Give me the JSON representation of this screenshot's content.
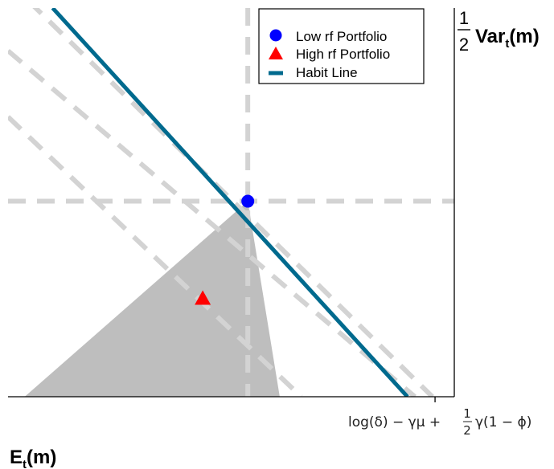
{
  "chart_data": {
    "type": "line",
    "title": "",
    "xlabel_parts": {
      "main": "E",
      "sub": "t",
      "rest": "(m)"
    },
    "ylabel_parts": {
      "frac_num": "1",
      "frac_den": "2",
      "main": "Var",
      "sub": "t",
      "rest": "(m)"
    },
    "x_tick_parts": {
      "pre": "log(δ) − γμ + ",
      "frac_num": "1",
      "frac_den": "2",
      "post": "γ(1 − ϕ)"
    },
    "xlim": [
      0,
      1.02
    ],
    "ylim": [
      0,
      1.0
    ],
    "x_tick_value": 0.976,
    "grid": false,
    "legend_position": "top-right",
    "series": [
      {
        "name": "Low rf Portfolio",
        "marker": "circle",
        "color": "#0000ff",
        "x": [
          0.548
        ],
        "y": [
          0.503
        ]
      },
      {
        "name": "High rf Portfolio",
        "marker": "triangle",
        "color": "#ff0000",
        "x": [
          0.445
        ],
        "y": [
          0.253
        ]
      },
      {
        "name": "Habit Line",
        "marker": "line",
        "color": "#006a8e",
        "x": [
          0.102,
          0.913
        ],
        "y": [
          1.0,
          0.0
        ]
      }
    ],
    "reference_lines": {
      "vertical_x": 0.548,
      "horizontal_y": 0.503,
      "diagonals": [
        {
          "x": [
            0.0,
            0.93
          ],
          "y": [
            0.89,
            0.0
          ]
        },
        {
          "x": [
            0.0,
            0.67
          ],
          "y": [
            0.72,
            0.0
          ]
        },
        {
          "x": [
            0.0,
            0.97
          ],
          "y": [
            1.07,
            0.0
          ]
        }
      ]
    },
    "shaded_region": {
      "x": [
        0.038,
        0.548,
        0.621
      ],
      "y": [
        0.0,
        0.503,
        0.0
      ],
      "color": "#bebebe"
    },
    "colors": {
      "reference": "#d3d3d3",
      "axis": "#000000"
    }
  }
}
